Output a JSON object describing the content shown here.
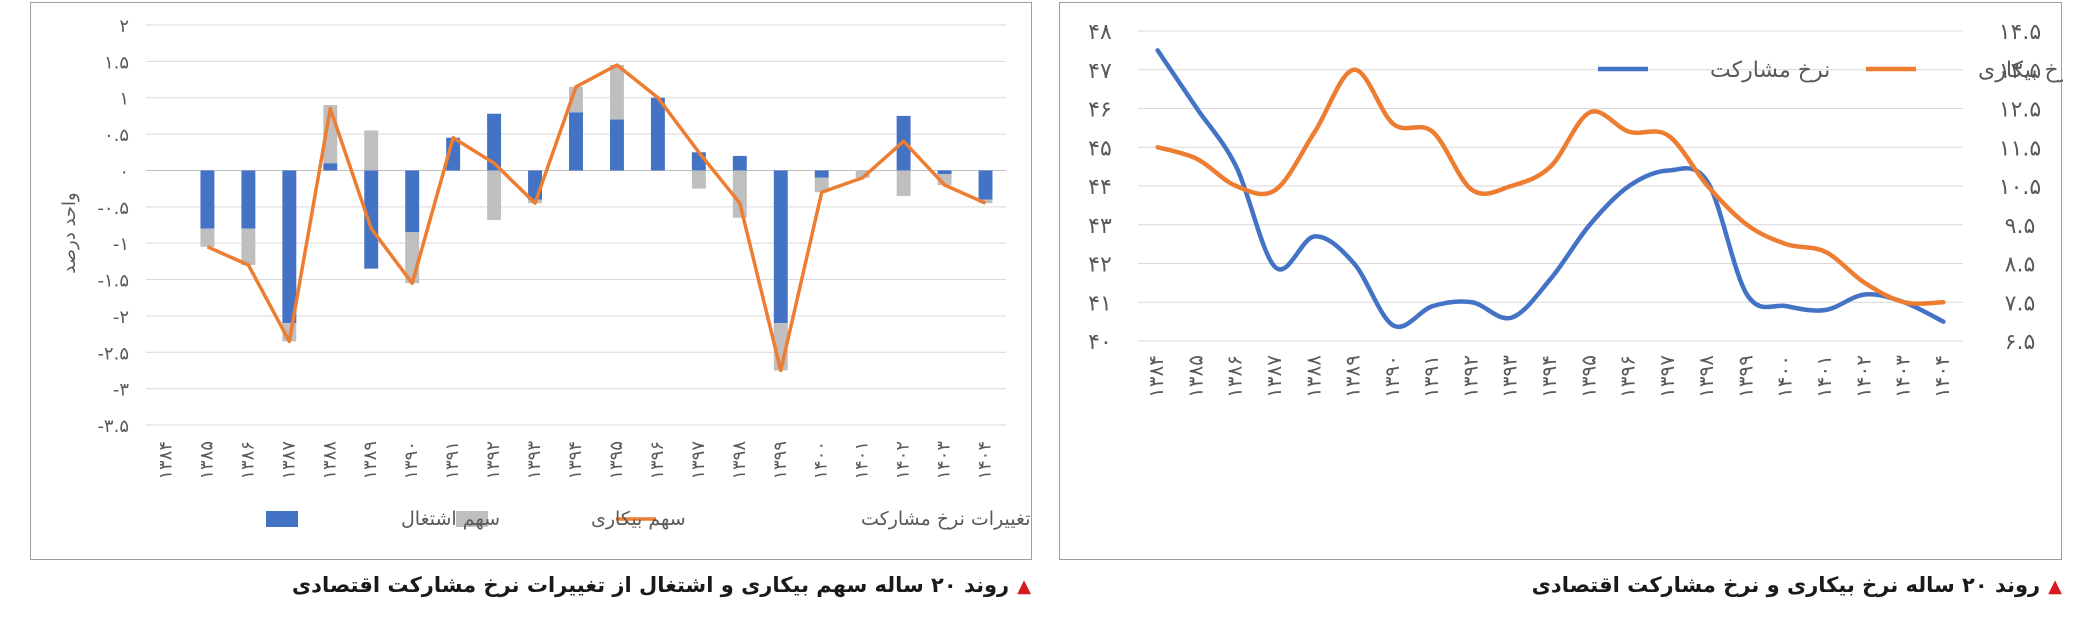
{
  "charts": {
    "right": {
      "caption": "روند ۲۰ ساله نرخ بیکاری و نرخ مشارکت اقتصادی"
    },
    "left": {
      "caption": "روند ۲۰ ساله سهم بیکاری و اشتغال از تغییرات نرخ مشارکت اقتصادی"
    }
  },
  "colors": {
    "blue": "#4472C4",
    "orange": "#ED7D31",
    "gray": "#BFBFBF",
    "caption_marker": "#D71920"
  },
  "chart_data": [
    {
      "type": "line",
      "categories": [
        "۱۳۸۴",
        "۱۳۸۵",
        "۱۳۸۶",
        "۱۳۸۷",
        "۱۳۸۸",
        "۱۳۸۹",
        "۱۳۹۰",
        "۱۳۹۱",
        "۱۳۹۲",
        "۱۳۹۳",
        "۱۳۹۴",
        "۱۳۹۵",
        "۱۳۹۶",
        "۱۳۹۷",
        "۱۳۹۸",
        "۱۳۹۹",
        "۱۴۰۰",
        "۱۴۰۱",
        "۱۴۰۲",
        "۱۴۰۳",
        "۱۴۰۴"
      ],
      "left_axis": {
        "min": 40,
        "max": 48,
        "ticks": [
          "۴۰",
          "۴۱",
          "۴۲",
          "۴۳",
          "۴۴",
          "۴۵",
          "۴۶",
          "۴۷",
          "۴۸"
        ]
      },
      "right_axis": {
        "min": 6.5,
        "max": 14.5,
        "ticks": [
          "۶.۵",
          "۷.۵",
          "۸.۵",
          "۹.۵",
          "۱۰.۵",
          "۱۱.۵",
          "۱۲.۵",
          "۱۳.۵",
          "۱۴.۵"
        ]
      },
      "grid": true,
      "legend_position": "top",
      "series": [
        {
          "name": "نرخ مشارکت",
          "axis": "left",
          "color": "#4472C4",
          "values": [
            47.5,
            46.0,
            44.5,
            41.9,
            42.7,
            42.0,
            40.4,
            40.9,
            41.0,
            40.6,
            41.6,
            43.0,
            44.0,
            44.4,
            44.1,
            41.2,
            40.9,
            40.8,
            41.2,
            41.0,
            40.5
          ]
        },
        {
          "name": "نرخ بیکاری",
          "axis": "right",
          "color": "#ED7D31",
          "values": [
            11.5,
            11.2,
            10.5,
            10.4,
            11.9,
            13.5,
            12.1,
            11.9,
            10.4,
            10.5,
            11.0,
            12.4,
            11.9,
            11.8,
            10.5,
            9.5,
            9.0,
            8.8,
            8.0,
            7.5,
            7.5
          ]
        }
      ]
    },
    {
      "type": "bar",
      "stacked": true,
      "categories": [
        "۱۳۸۴",
        "۱۳۸۵",
        "۱۳۸۶",
        "۱۳۸۷",
        "۱۳۸۸",
        "۱۳۸۹",
        "۱۳۹۰",
        "۱۳۹۱",
        "۱۳۹۲",
        "۱۳۹۳",
        "۱۳۹۴",
        "۱۳۹۵",
        "۱۳۹۶",
        "۱۳۹۷",
        "۱۳۹۸",
        "۱۳۹۹",
        "۱۴۰۰",
        "۱۴۰۱",
        "۱۴۰۲",
        "۱۴۰۳",
        "۱۴۰۴"
      ],
      "ylabel": "واحد درصد",
      "ylim": [
        -3.5,
        2
      ],
      "yticks": [
        "۲",
        "۱.۵",
        "۱",
        "۰.۵",
        "۰",
        "-۰.۵",
        "-۱",
        "-۱.۵",
        "-۲",
        "-۲.۵",
        "-۳",
        "-۳.۵"
      ],
      "grid": true,
      "legend_position": "bottom",
      "series": [
        {
          "name": "سهم اشتغال",
          "kind": "bar",
          "color": "#4472C4",
          "values": [
            null,
            -0.8,
            -0.8,
            -2.1,
            0.1,
            -1.35,
            -0.85,
            0.45,
            0.78,
            -0.4,
            0.8,
            0.7,
            1.0,
            0.25,
            0.2,
            -2.1,
            -0.1,
            0.0,
            0.75,
            -0.05,
            -0.4
          ]
        },
        {
          "name": "سهم بیکاری",
          "kind": "bar",
          "color": "#BFBFBF",
          "values": [
            null,
            -0.25,
            -0.5,
            -0.25,
            0.8,
            0.55,
            -0.7,
            0.0,
            -0.68,
            -0.05,
            0.35,
            0.75,
            0.0,
            -0.25,
            -0.65,
            -0.65,
            -0.2,
            -0.1,
            -0.35,
            -0.15,
            -0.05
          ]
        },
        {
          "name": "تغییرات نرخ مشارکت",
          "kind": "line",
          "color": "#ED7D31",
          "values": [
            null,
            -1.05,
            -1.3,
            -2.35,
            0.85,
            -0.8,
            -1.55,
            0.45,
            0.1,
            -0.45,
            1.15,
            1.45,
            1.0,
            0.25,
            -0.45,
            -2.75,
            -0.3,
            -0.1,
            0.4,
            -0.2,
            -0.45
          ]
        }
      ]
    }
  ]
}
